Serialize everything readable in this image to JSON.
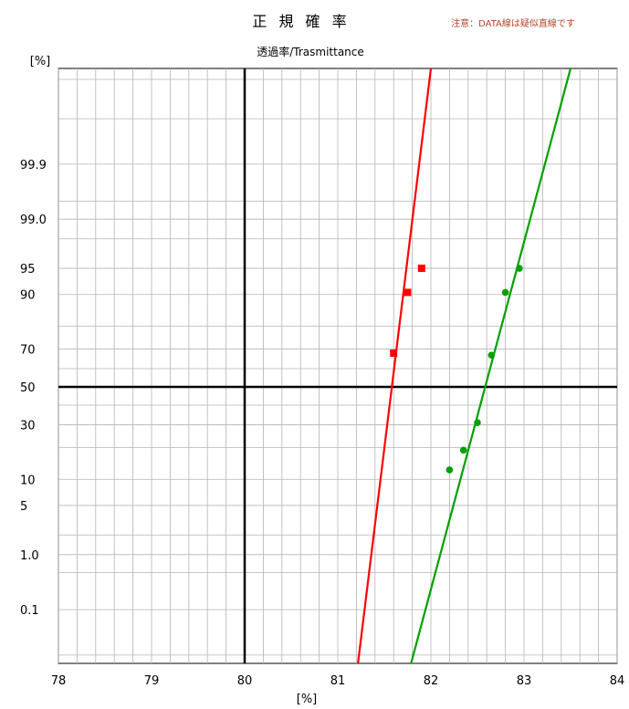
{
  "chart_data": {
    "type": "scatter",
    "title": "正 規 確 率",
    "note": "注意：DATA線は疑似直線です",
    "subtitle": "透過率/Trasmittance",
    "xlabel": "[%]",
    "ylabel": "[%]",
    "xlim": [
      78,
      84
    ],
    "x_ticks": [
      "78",
      "79",
      "80",
      "81",
      "82",
      "83",
      "84"
    ],
    "y_scale": "normal-probability",
    "y_ticks": [
      "99.9",
      "99.0",
      "95",
      "90",
      "70",
      "50",
      "30",
      "10",
      "5",
      "1.0",
      "0.1"
    ],
    "grid": true,
    "series": [
      {
        "color": "#ff0000",
        "marker": "square",
        "points": [
          {
            "x": 81.6,
            "y": 68
          },
          {
            "x": 81.75,
            "y": 90.5
          },
          {
            "x": 81.9,
            "y": 95
          }
        ],
        "fit_line": [
          {
            "x": 81.2,
            "y": 0.003
          },
          {
            "x": 82.0,
            "y": 99.9995
          }
        ]
      },
      {
        "color": "#00a000",
        "marker": "circle",
        "points": [
          {
            "x": 82.2,
            "y": 12.5
          },
          {
            "x": 82.35,
            "y": 19
          },
          {
            "x": 82.5,
            "y": 31
          },
          {
            "x": 82.65,
            "y": 67
          },
          {
            "x": 82.8,
            "y": 90.5
          },
          {
            "x": 82.95,
            "y": 95
          }
        ],
        "fit_line": [
          {
            "x": 81.75,
            "y": 0.003
          },
          {
            "x": 83.5,
            "y": 99.9995
          }
        ]
      }
    ]
  }
}
